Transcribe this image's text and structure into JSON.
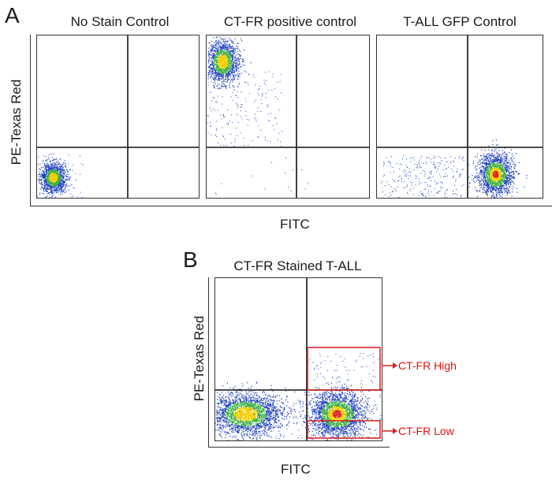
{
  "panel_a": {
    "letter": "A",
    "ylabel": "PE-Texas Red",
    "xlabel": "FITC",
    "plots": [
      {
        "title": "No Stain Control"
      },
      {
        "title": "CT-FR positive control"
      },
      {
        "title": "T-ALL GFP Control"
      }
    ]
  },
  "panel_b": {
    "letter": "B",
    "title": "CT-FR Stained T-ALL",
    "ylabel": "PE-Texas Red",
    "xlabel": "FITC",
    "gates": [
      {
        "label": "CT-FR High",
        "color": "#d61f1f"
      },
      {
        "label": "CT-FR Low",
        "color": "#d61f1f"
      }
    ]
  },
  "colors": {
    "density_low": "#1f3fbf",
    "density_mid": "#3cb043",
    "density_high": "#f0d000",
    "density_peak": "#e02020",
    "gate": "#d61f1f"
  }
}
